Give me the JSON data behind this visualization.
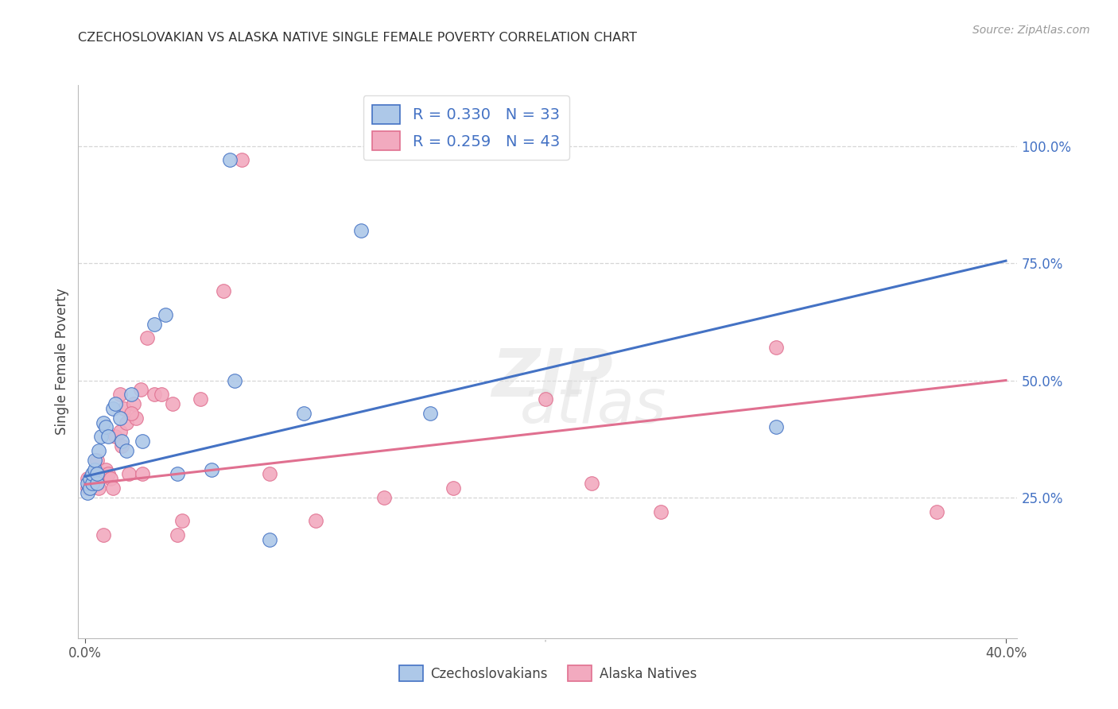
{
  "title": "CZECHOSLOVAKIAN VS ALASKA NATIVE SINGLE FEMALE POVERTY CORRELATION CHART",
  "source": "Source: ZipAtlas.com",
  "ylabel": "Single Female Poverty",
  "y_ticks": [
    0.25,
    0.5,
    0.75,
    1.0
  ],
  "y_tick_labels": [
    "25.0%",
    "50.0%",
    "75.0%",
    "100.0%"
  ],
  "xlim": [
    -0.003,
    0.405
  ],
  "ylim": [
    -0.05,
    1.13
  ],
  "blue_R": 0.33,
  "blue_N": 33,
  "pink_R": 0.259,
  "pink_N": 43,
  "blue_label": "Czechoslovakians",
  "pink_label": "Alaska Natives",
  "blue_color": "#adc8e8",
  "pink_color": "#f2aabf",
  "blue_line_color": "#4472c4",
  "pink_line_color": "#e07090",
  "legend_text_color": "#4472c4",
  "watermark_top": "ZIP",
  "watermark_bot": "atlas",
  "background_color": "#ffffff",
  "blue_x": [
    0.001,
    0.001,
    0.002,
    0.002,
    0.003,
    0.003,
    0.004,
    0.004,
    0.005,
    0.005,
    0.006,
    0.007,
    0.008,
    0.009,
    0.01,
    0.012,
    0.013,
    0.015,
    0.016,
    0.018,
    0.02,
    0.025,
    0.03,
    0.035,
    0.04,
    0.055,
    0.065,
    0.08,
    0.095,
    0.12,
    0.15,
    0.3,
    0.063
  ],
  "blue_y": [
    0.26,
    0.28,
    0.27,
    0.29,
    0.28,
    0.3,
    0.31,
    0.33,
    0.28,
    0.3,
    0.35,
    0.38,
    0.41,
    0.4,
    0.38,
    0.44,
    0.45,
    0.42,
    0.37,
    0.35,
    0.47,
    0.37,
    0.62,
    0.64,
    0.3,
    0.31,
    0.5,
    0.16,
    0.43,
    0.82,
    0.43,
    0.4,
    0.97
  ],
  "pink_x": [
    0.001,
    0.001,
    0.002,
    0.003,
    0.004,
    0.005,
    0.006,
    0.007,
    0.008,
    0.009,
    0.01,
    0.011,
    0.012,
    0.013,
    0.015,
    0.016,
    0.017,
    0.018,
    0.019,
    0.021,
    0.022,
    0.024,
    0.027,
    0.03,
    0.033,
    0.038,
    0.042,
    0.05,
    0.06,
    0.08,
    0.1,
    0.13,
    0.16,
    0.2,
    0.22,
    0.25,
    0.3,
    0.37,
    0.04,
    0.02,
    0.015,
    0.025,
    0.068
  ],
  "pink_y": [
    0.27,
    0.29,
    0.28,
    0.28,
    0.3,
    0.33,
    0.27,
    0.3,
    0.17,
    0.31,
    0.3,
    0.29,
    0.27,
    0.38,
    0.39,
    0.36,
    0.44,
    0.41,
    0.3,
    0.45,
    0.42,
    0.48,
    0.59,
    0.47,
    0.47,
    0.45,
    0.2,
    0.46,
    0.69,
    0.3,
    0.2,
    0.25,
    0.27,
    0.46,
    0.28,
    0.22,
    0.57,
    0.22,
    0.17,
    0.43,
    0.47,
    0.3,
    0.97
  ],
  "blue_line_x0": 0.0,
  "blue_line_y0": 0.295,
  "blue_line_x1": 0.4,
  "blue_line_y1": 0.755,
  "pink_line_x0": 0.0,
  "pink_line_y0": 0.278,
  "pink_line_x1": 0.4,
  "pink_line_y1": 0.5
}
